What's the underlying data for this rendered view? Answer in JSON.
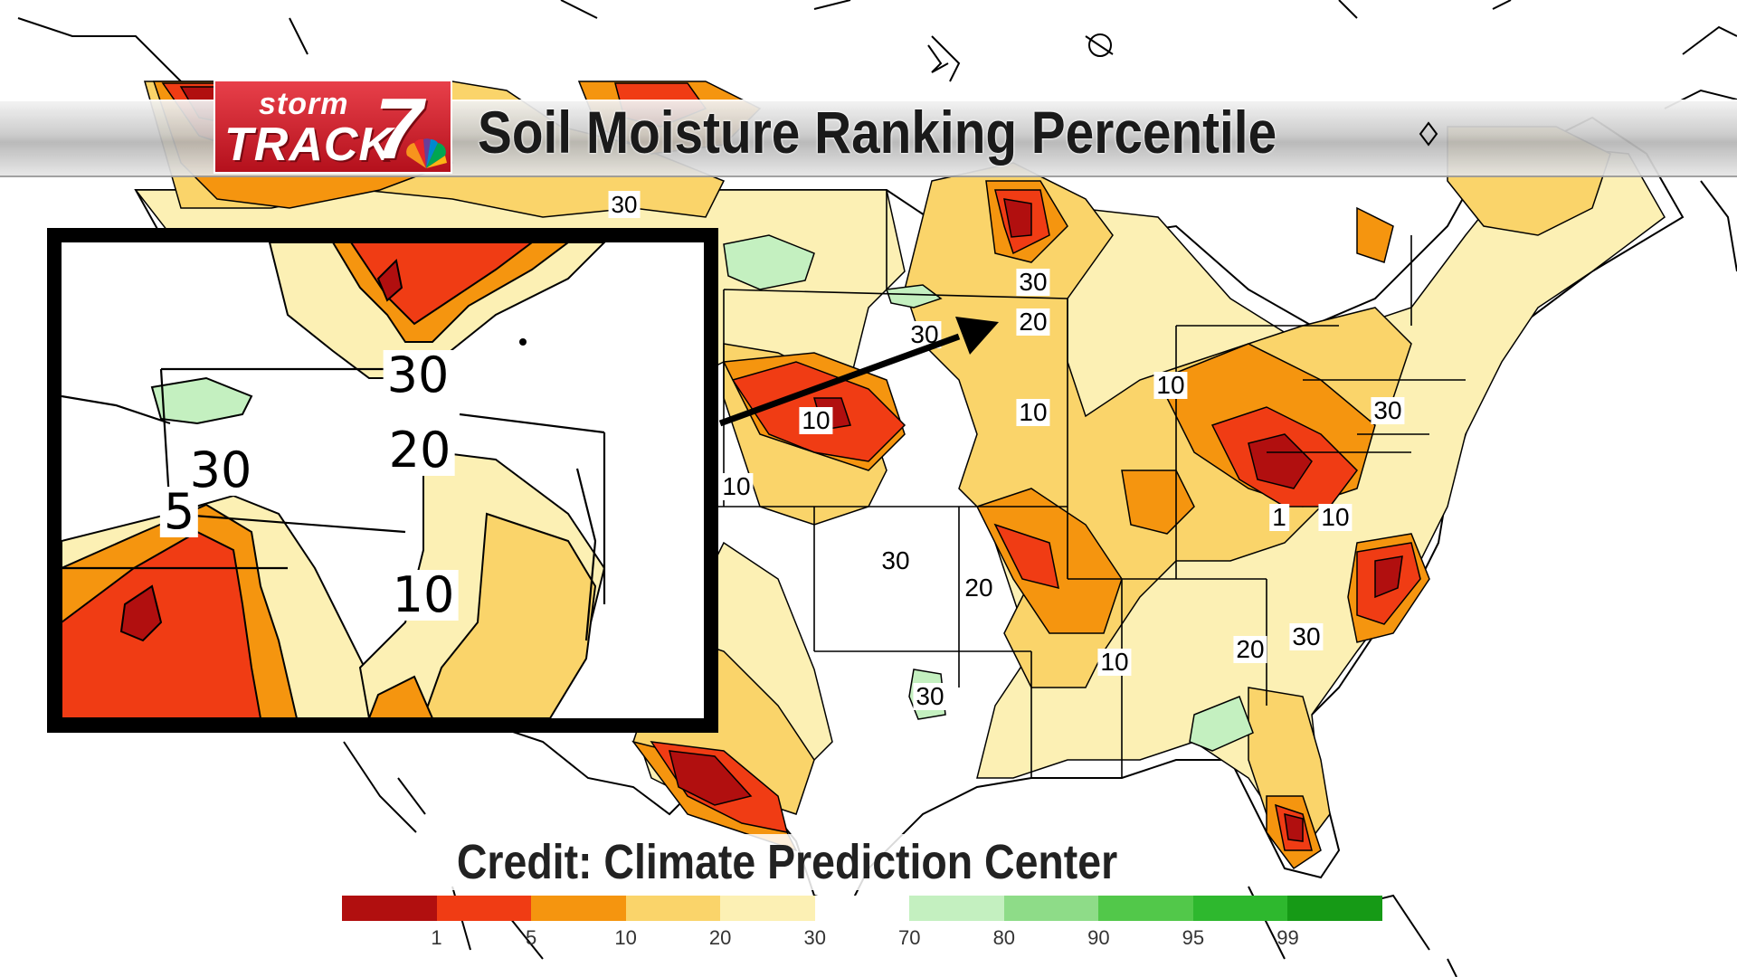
{
  "header": {
    "logo_word1": "storm",
    "logo_word2": "TRACK",
    "logo_number": "7",
    "title": "Soil Moisture Ranking Percentile"
  },
  "credit": "Credit: Climate Prediction Center",
  "map_labels": [
    "30",
    "30",
    "20",
    "30",
    "10",
    "10",
    "10",
    "30",
    "1",
    "10",
    "10",
    "30",
    "20",
    "10",
    "20",
    "30",
    "30"
  ],
  "inset_labels": [
    "30",
    "20",
    "30",
    "5",
    "10"
  ],
  "legend": {
    "ticks": [
      "1",
      "5",
      "10",
      "20",
      "30",
      "70",
      "80",
      "90",
      "95",
      "99"
    ],
    "colors": [
      "#b10f0f",
      "#f03c14",
      "#f5950f",
      "#fad46a",
      "#fcf0b4",
      "#ffffff",
      "#c4f0c0",
      "#8edc88",
      "#52c84a",
      "#2eb82e",
      "#169a16"
    ]
  },
  "palette": {
    "p1": "#b10f0f",
    "p5": "#f03c14",
    "p10": "#f5950f",
    "p20": "#fad46a",
    "p30": "#fcf0b4",
    "wet70": "#c4f0c0",
    "brand": "#d42630"
  }
}
